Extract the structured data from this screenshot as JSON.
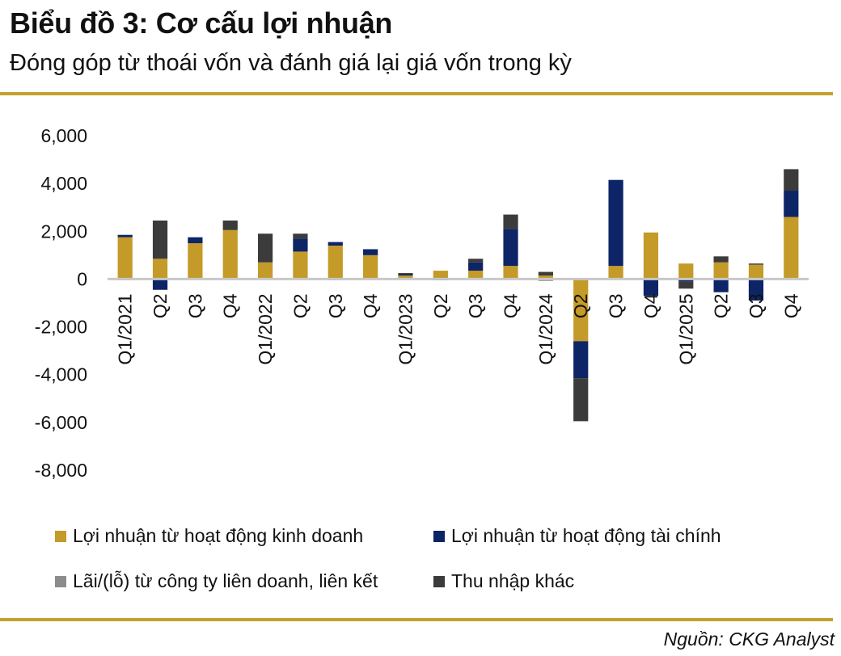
{
  "header": {
    "title": "Biểu đồ 3: Cơ cấu lợi nhuận",
    "subtitle": "Đóng góp từ thoái vốn và đánh giá lại giá vốn trong kỳ"
  },
  "footer": {
    "source": "Nguồn: CKG Analyst"
  },
  "colors": {
    "business": "#c49a28",
    "financial": "#0d2466",
    "associates": "#8c8c8c",
    "other": "#3b3b3b",
    "rule": "#c4a12c"
  },
  "chart_data": {
    "type": "bar",
    "stacked": true,
    "categories": [
      "Q1/2021",
      "Q2",
      "Q3",
      "Q4",
      "Q1/2022",
      "Q2",
      "Q3",
      "Q4",
      "Q1/2023",
      "Q2",
      "Q3",
      "Q4",
      "Q1/2024",
      "Q2",
      "Q3",
      "Q4",
      "Q1/2025",
      "Q2",
      "Q3",
      "Q4"
    ],
    "ylim": [
      -8000,
      6000
    ],
    "yticks": [
      6000,
      4000,
      2000,
      0,
      -2000,
      -4000,
      -6000,
      -8000
    ],
    "ytick_labels": [
      "6,000",
      "4,000",
      "2,000",
      "0",
      "-2,000",
      "-4,000",
      "-6,000",
      "-8,000"
    ],
    "legend": "bottom",
    "series": [
      {
        "name": "Lợi nhuận từ hoạt động kinh doanh",
        "color_key": "business",
        "values": [
          1750,
          850,
          1500,
          2050,
          700,
          1150,
          1400,
          1000,
          150,
          350,
          350,
          550,
          150,
          -2600,
          550,
          1950,
          650,
          700,
          600,
          2600
        ]
      },
      {
        "name": "Lợi nhuận từ hoạt động tài chính",
        "color_key": "financial",
        "values": [
          100,
          -450,
          250,
          0,
          0,
          550,
          150,
          250,
          50,
          -50,
          350,
          1550,
          0,
          -1550,
          3600,
          -700,
          -100,
          -550,
          -900,
          1100
        ]
      },
      {
        "name": "Lãi/(lỗ) từ công ty liên doanh, liên kết",
        "color_key": "associates",
        "values": [
          -50,
          0,
          0,
          0,
          0,
          0,
          -50,
          0,
          0,
          0,
          0,
          0,
          -80,
          0,
          0,
          0,
          0,
          0,
          0,
          0
        ]
      },
      {
        "name": "Thu nhập khác",
        "color_key": "other",
        "values": [
          0,
          1600,
          0,
          400,
          1200,
          200,
          0,
          0,
          50,
          0,
          150,
          600,
          150,
          -1800,
          0,
          0,
          -300,
          250,
          50,
          900
        ]
      }
    ]
  }
}
